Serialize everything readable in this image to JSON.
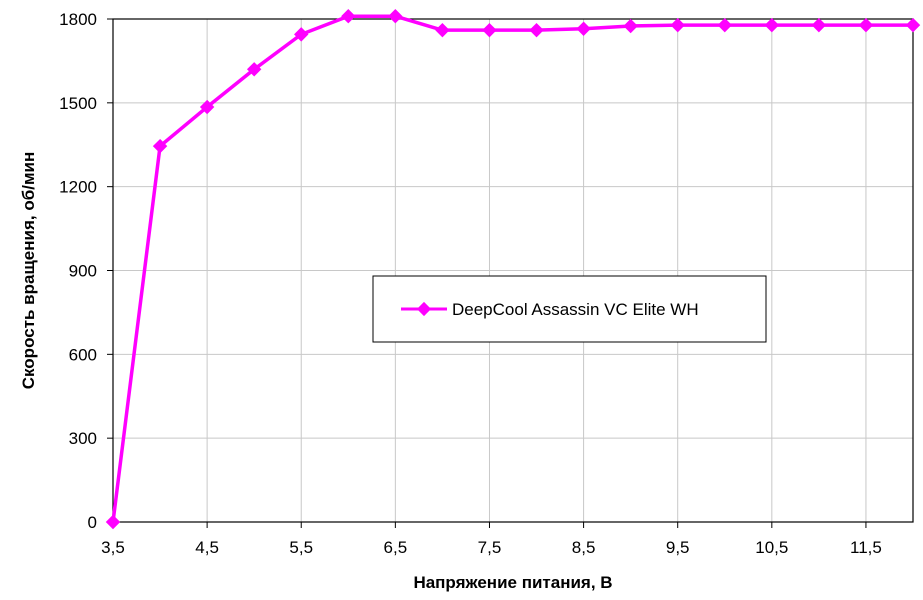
{
  "chart_data": {
    "type": "line",
    "title": "",
    "xlabel": "Напряжение питания, В",
    "ylabel": "Скорость вращения, об/мин",
    "xlim": [
      3.5,
      12
    ],
    "ylim": [
      0,
      1800
    ],
    "x_tick_values": [
      3.5,
      4.5,
      5.5,
      6.5,
      7.5,
      8.5,
      9.5,
      10.5,
      11.5
    ],
    "x_tick_labels": [
      "3,5",
      "4,5",
      "5,5",
      "6,5",
      "7,5",
      "8,5",
      "9,5",
      "10,5",
      "11,5"
    ],
    "y_tick_values": [
      0,
      300,
      600,
      900,
      1200,
      1500,
      1800
    ],
    "y_tick_labels": [
      "0",
      "300",
      "600",
      "900",
      "1200",
      "1500",
      "1800"
    ],
    "grid": true,
    "legend_position": "center-right",
    "series": [
      {
        "name": "DeepCool Assassin VC Elite WH",
        "color": "#ff00ff",
        "marker": "diamond",
        "x": [
          3.5,
          4,
          4.5,
          5,
          5.5,
          6,
          6.5,
          7,
          7.5,
          8,
          8.5,
          9,
          9.5,
          10,
          10.5,
          11,
          11.5,
          12
        ],
        "y": [
          0,
          1345,
          1485,
          1620,
          1745,
          1810,
          1810,
          1760,
          1760,
          1760,
          1765,
          1775,
          1778,
          1778,
          1778,
          1778,
          1778,
          1778
        ]
      }
    ]
  }
}
